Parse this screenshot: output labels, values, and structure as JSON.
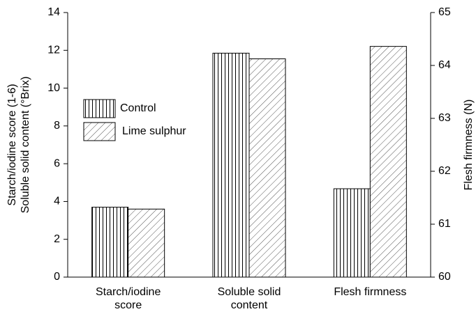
{
  "chart_data": {
    "type": "bar",
    "categories": [
      "Starch/iodine score",
      "Soluble solid content",
      "Flesh firmness"
    ],
    "category_axes": [
      "y",
      "y",
      "y2"
    ],
    "ylabel": [
      "Starch/iodine score (1-6)",
      "Soluble solid content (°Brix)"
    ],
    "y2label": "Flesh firmness (N)",
    "series": [
      {
        "name": "Control",
        "color": "#000000",
        "hatch": "vertical",
        "values": [
          3.7,
          11.85,
          61.67
        ]
      },
      {
        "name": "Lime sulphur",
        "color": "#000000",
        "hatch": "diagonal",
        "values": [
          3.6,
          11.55,
          64.36
        ]
      }
    ],
    "ylim": [
      0,
      14
    ],
    "yticks": [
      0,
      2,
      4,
      6,
      8,
      10,
      12,
      14
    ],
    "y2lim": [
      60,
      65
    ],
    "y2ticks": [
      60,
      61,
      62,
      63,
      64,
      65
    ],
    "grid": false
  }
}
